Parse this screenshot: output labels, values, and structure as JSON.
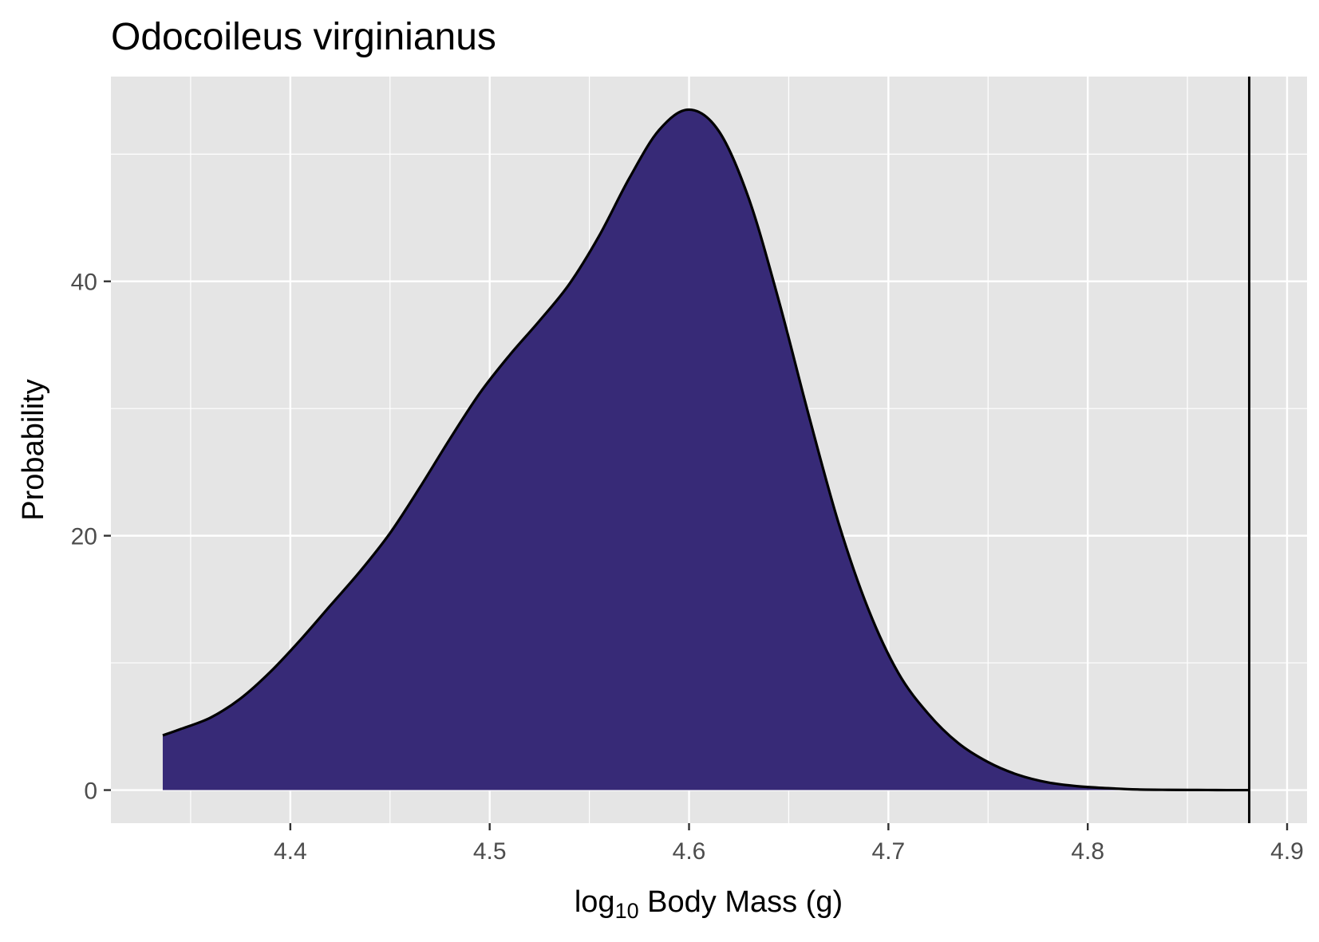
{
  "chart_data": {
    "type": "area",
    "title": "Odocoileus virginianus",
    "xlabel": {
      "prefix": "log",
      "subscript": "10",
      "suffix": " Body Mass (g)"
    },
    "ylabel": "Probability",
    "xlim": [
      4.31,
      4.91
    ],
    "ylim": [
      -2.6,
      56.1
    ],
    "x_ticks": [
      4.4,
      4.5,
      4.6,
      4.7,
      4.8,
      4.9
    ],
    "x_tick_labels": [
      "4.4",
      "4.5",
      "4.6",
      "4.7",
      "4.8",
      "4.9"
    ],
    "y_ticks": [
      0,
      20,
      40
    ],
    "y_tick_labels": [
      "0",
      "20",
      "40"
    ],
    "grid": true,
    "background": "#e5e5e5",
    "grid_color": "#ffffff",
    "fill_color": "#372a77",
    "line_color": "#000000",
    "vline_x": 4.881,
    "series": [
      {
        "x": [
          4.336,
          4.345,
          4.36,
          4.375,
          4.39,
          4.405,
          4.42,
          4.435,
          4.45,
          4.465,
          4.48,
          4.495,
          4.51,
          4.525,
          4.54,
          4.555,
          4.57,
          4.585,
          4.6,
          4.615,
          4.63,
          4.645,
          4.66,
          4.675,
          4.69,
          4.705,
          4.72,
          4.735,
          4.75,
          4.765,
          4.78,
          4.795,
          4.81,
          4.825,
          4.84,
          4.855,
          4.87,
          4.881
        ],
        "y": [
          4.3,
          4.8,
          5.7,
          7.2,
          9.3,
          11.8,
          14.5,
          17.2,
          20.2,
          23.8,
          27.6,
          31.2,
          34.2,
          36.9,
          39.8,
          43.6,
          48.1,
          51.9,
          53.5,
          51.8,
          46.5,
          38.5,
          29.5,
          21.0,
          14.2,
          9.2,
          6.0,
          3.7,
          2.2,
          1.2,
          0.6,
          0.3,
          0.15,
          0.05,
          0.02,
          0.01,
          0.0,
          0.0
        ]
      }
    ]
  }
}
